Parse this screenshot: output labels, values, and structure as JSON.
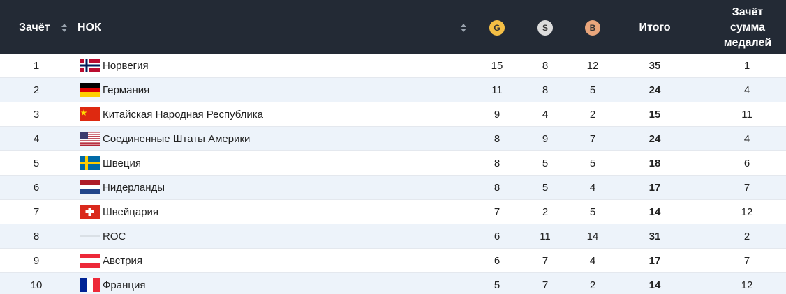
{
  "table": {
    "header": [
      "Зачёт",
      "НОК",
      "G",
      "S",
      "B",
      "Итого",
      "Зачёт сумма медалей"
    ],
    "rows": [
      [
        1,
        "Норвегия",
        15,
        8,
        12,
        35,
        1
      ],
      [
        2,
        "Германия",
        11,
        8,
        5,
        24,
        4
      ],
      [
        3,
        "Китайская Народная Республика",
        9,
        4,
        2,
        15,
        11
      ],
      [
        4,
        "Соединенные Штаты Америки",
        8,
        9,
        7,
        24,
        4
      ],
      [
        5,
        "Швеция",
        8,
        5,
        5,
        18,
        6
      ],
      [
        6,
        "Нидерланды",
        8,
        5,
        4,
        17,
        7
      ],
      [
        7,
        "Швейцария",
        7,
        2,
        5,
        14,
        12
      ],
      [
        8,
        "ROC",
        6,
        11,
        14,
        31,
        2
      ],
      [
        9,
        "Австрия",
        6,
        7,
        4,
        17,
        7
      ],
      [
        10,
        "Франция",
        5,
        7,
        2,
        14,
        12
      ]
    ]
  }
}
